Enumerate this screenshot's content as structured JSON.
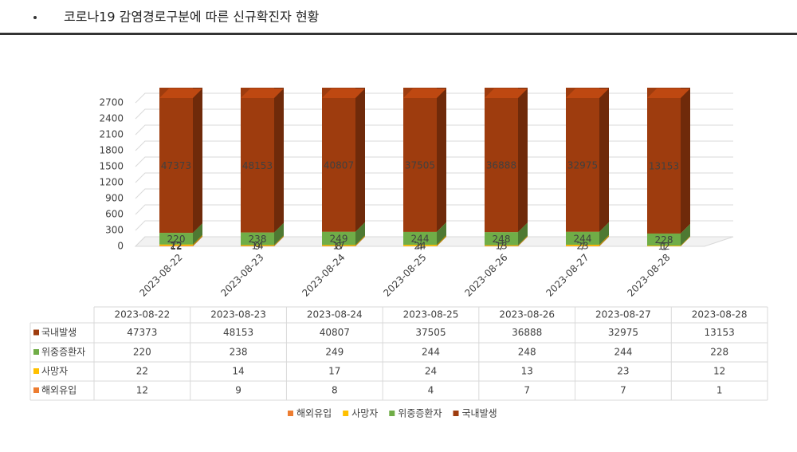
{
  "chart_data": {
    "type": "bar3d_stacked",
    "title": "코로나19 감염경로구분에 따른 신규확진자 현황",
    "categories": [
      "2023-08-22",
      "2023-08-23",
      "2023-08-24",
      "2023-08-25",
      "2023-08-26",
      "2023-08-27",
      "2023-08-28"
    ],
    "series": [
      {
        "name": "해외유입",
        "color": "#ed7d31",
        "values": [
          12,
          9,
          8,
          4,
          7,
          7,
          1
        ]
      },
      {
        "name": "사망자",
        "color": "#ffc000",
        "values": [
          22,
          14,
          17,
          24,
          13,
          23,
          12
        ]
      },
      {
        "name": "위중증환자",
        "color": "#70ad47",
        "values": [
          220,
          238,
          249,
          244,
          248,
          244,
          228
        ]
      },
      {
        "name": "국내발생",
        "color": "#9e3c0e",
        "values": [
          47373,
          48153,
          40807,
          37505,
          36888,
          32975,
          13153
        ]
      }
    ],
    "ylim": [
      0,
      2700
    ],
    "yticks": [
      0,
      300,
      600,
      900,
      1200,
      1500,
      1800,
      2100,
      2400,
      2700
    ],
    "grid": true
  }
}
